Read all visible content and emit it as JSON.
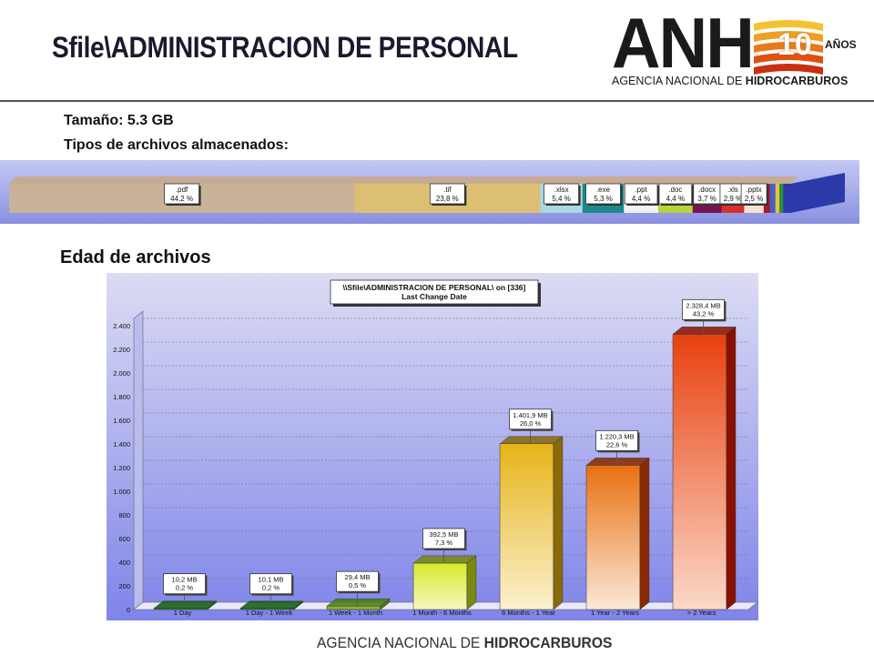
{
  "header": {
    "title": "Sfile\\ADMINISTRACION DE PERSONAL"
  },
  "logo": {
    "letters": "ANH",
    "badge": "10",
    "years": "AÑOS",
    "subtitle_regular": "AGENCIA NACIONAL DE ",
    "subtitle_bold": "HIDROCARBUROS"
  },
  "info": {
    "size_line": "Tamaño: 5.3 GB",
    "types_line": "Tipos de archivos almacenados:"
  },
  "file_types": [
    {
      "ext": ".pdf",
      "pct": 44.2,
      "pct_label": "44,2 %",
      "color": "#c8b39a"
    },
    {
      "ext": ".tif",
      "pct": 23.8,
      "pct_label": "23,8 %",
      "color": "#dcbf72"
    },
    {
      "ext": ".xlsx",
      "pct": 5.4,
      "pct_label": "5,4 %",
      "color": "#a8d8e4"
    },
    {
      "ext": ".exe",
      "pct": 5.3,
      "pct_label": "5,3 %",
      "color": "#1c8a8a"
    },
    {
      "ext": ".ppt",
      "pct": 4.4,
      "pct_label": "4,4 %",
      "color": "#f2f2f2"
    },
    {
      "ext": ".doc",
      "pct": 4.4,
      "pct_label": "4,4 %",
      "color": "#b5d63a"
    },
    {
      "ext": ".docx",
      "pct": 3.7,
      "pct_label": "3,7 %",
      "color": "#7a1450"
    },
    {
      "ext": ".xls",
      "pct": 2.9,
      "pct_label": "2,9 %",
      "color": "#d9302a"
    },
    {
      "ext": ".pptx",
      "pct": 2.5,
      "pct_label": "2,5 %",
      "color": "#f4e3d0"
    },
    {
      "ext": "",
      "pct": 0.8,
      "pct_label": "",
      "color": "#b0172e"
    },
    {
      "ext": "",
      "pct": 0.7,
      "pct_label": "",
      "color": "#4a5fc0"
    },
    {
      "ext": "",
      "pct": 0.5,
      "pct_label": "",
      "color": "#e8c040"
    },
    {
      "ext": "",
      "pct": 0.5,
      "pct_label": "",
      "color": "#2a8f3e"
    },
    {
      "ext": "",
      "pct": 0.9,
      "pct_label": "",
      "color": "#2b3aa8"
    }
  ],
  "section": {
    "age_title": "Edad de archivos"
  },
  "chart_data": {
    "type": "bar",
    "title": "\\\\Sfile\\ADMINISTRACION DE PERSONAL\\  on  [336]",
    "subtitle": "Last Change Date",
    "xlabel": "",
    "ylabel": "",
    "ylim": [
      0,
      2400
    ],
    "yticks": [
      0,
      200,
      400,
      600,
      800,
      1000,
      1200,
      1400,
      1600,
      1800,
      2000,
      2200,
      2400
    ],
    "ytick_labels": [
      "0",
      "200",
      "400",
      "600",
      "800",
      "1.000",
      "1.200",
      "1.400",
      "1.600",
      "1.800",
      "2.000",
      "2.200",
      "2.400"
    ],
    "grid": true,
    "categories": [
      "1 Day",
      "1 Day - 1 Week",
      "1 Week - 1 Month",
      "1 Month - 6 Months",
      "6 Months - 1 Year",
      "1 Year - 2 Years",
      "> 2 Years"
    ],
    "values": [
      10.2,
      10.1,
      29.4,
      392.5,
      1401.9,
      1220.3,
      2328.4
    ],
    "value_labels": [
      "10,2 MB",
      "10,1 MB",
      "29,4 MB",
      "392,5 MB",
      "1.401,9 MB",
      "1.220,3 MB",
      "2.328,4 MB"
    ],
    "percent_labels": [
      "0,2 %",
      "0,2 %",
      "0,5 %",
      "7,3 %",
      "26,0 %",
      "22,6 %",
      "43,2 %"
    ],
    "colors": [
      [
        "#1f8a1f",
        "#1f8a1f",
        "#0e5a0e"
      ],
      [
        "#1f8a1f",
        "#1f8a1f",
        "#0e5a0e"
      ],
      [
        "#6fae1f",
        "#88b52a",
        "#4a7a10"
      ],
      [
        "#f5f8c0",
        "#d8e82a",
        "#7a8a10"
      ],
      [
        "#fbf0d0",
        "#e6b418",
        "#8a6a08"
      ],
      [
        "#fbe8d8",
        "#e87010",
        "#8a2a00"
      ],
      [
        "#fbd8c8",
        "#e84010",
        "#8a1000"
      ]
    ]
  },
  "footer": {
    "regular": "AGENCIA NACIONAL DE ",
    "bold": "HIDROCARBUROS"
  }
}
